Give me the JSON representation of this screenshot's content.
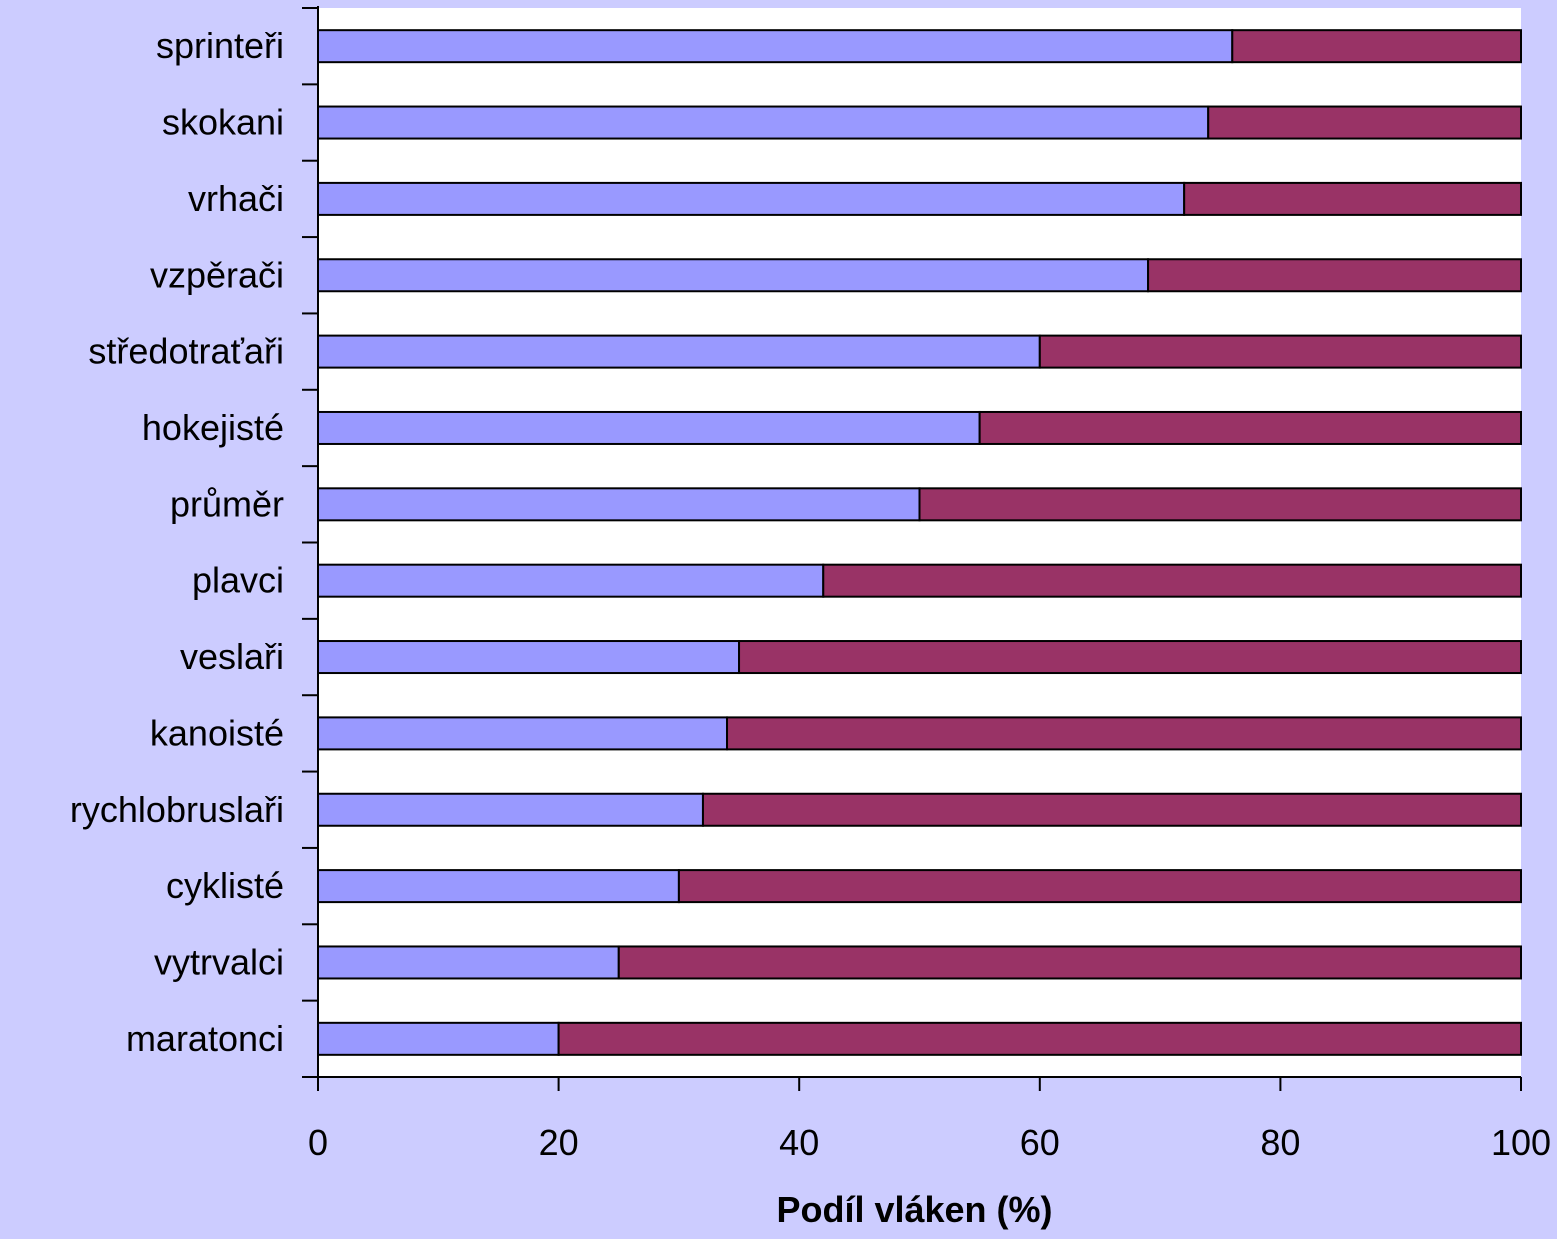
{
  "colors": {
    "background": "#ccccff",
    "plot_area": "#ffffff",
    "series_1": "#9999ff",
    "series_2": "#993366",
    "axis": "#000000"
  },
  "chart_data": {
    "type": "bar",
    "orientation": "horizontal",
    "stacked": true,
    "categories": [
      "sprinteři",
      "skokani",
      "vrhači",
      "vzpěrači",
      "středotraťaři",
      "hokejisté",
      "průměr",
      "plavci",
      "veslaři",
      "kanoisté",
      "rychlobruslaři",
      "cyklisté",
      "vytrvalci",
      "maratonci"
    ],
    "series": [
      {
        "color": "#9999ff",
        "values": [
          76,
          74,
          72,
          69,
          60,
          55,
          50,
          42,
          35,
          34,
          32,
          30,
          25,
          20
        ]
      },
      {
        "color": "#993366",
        "values": [
          24,
          26,
          28,
          31,
          40,
          45,
          50,
          58,
          65,
          66,
          68,
          70,
          75,
          80
        ]
      }
    ],
    "xlim": [
      0,
      100
    ],
    "xticks": [
      "0",
      "20",
      "40",
      "60",
      "80",
      "100"
    ],
    "xlabel": "Podíl vláken (%)",
    "ylabel": "",
    "title": "",
    "legend": "none",
    "grid": false
  }
}
